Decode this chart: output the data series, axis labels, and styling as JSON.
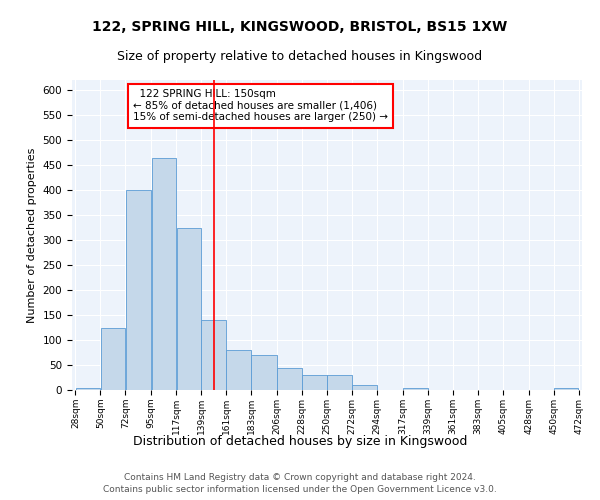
{
  "title1": "122, SPRING HILL, KINGSWOOD, BRISTOL, BS15 1XW",
  "title2": "Size of property relative to detached houses in Kingswood",
  "xlabel": "Distribution of detached houses by size in Kingswood",
  "ylabel": "Number of detached properties",
  "footer1": "Contains HM Land Registry data © Crown copyright and database right 2024.",
  "footer2": "Contains public sector information licensed under the Open Government Licence v3.0.",
  "annotation_line1": "122 SPRING HILL: 150sqm",
  "annotation_line2": "← 85% of detached houses are smaller (1,406)",
  "annotation_line3": "15% of semi-detached houses are larger (250) →",
  "bar_color": "#c5d8ea",
  "bar_edge_color": "#5b9bd5",
  "red_line_x": 150,
  "bin_edges": [
    28,
    50,
    72,
    95,
    117,
    139,
    161,
    183,
    206,
    228,
    250,
    272,
    294,
    317,
    339,
    361,
    383,
    405,
    428,
    450,
    472
  ],
  "bar_heights": [
    5,
    125,
    400,
    465,
    325,
    140,
    80,
    70,
    45,
    30,
    30,
    10,
    0,
    5,
    0,
    0,
    0,
    0,
    0,
    5
  ],
  "ylim": [
    0,
    620
  ],
  "yticks": [
    0,
    50,
    100,
    150,
    200,
    250,
    300,
    350,
    400,
    450,
    500,
    550,
    600
  ],
  "background_color": "#edf3fb",
  "grid_color": "#ffffff",
  "title1_fontsize": 10,
  "title2_fontsize": 9,
  "xlabel_fontsize": 9,
  "ylabel_fontsize": 8,
  "footer_fontsize": 6.5,
  "annotation_fontsize": 7.5
}
